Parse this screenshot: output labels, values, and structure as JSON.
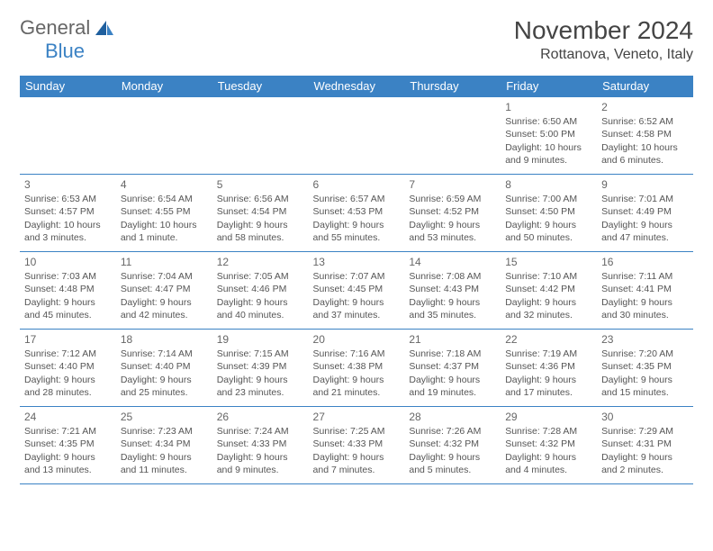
{
  "brand": {
    "word1": "General",
    "word2": "Blue",
    "accent_color": "#3b82c4"
  },
  "title": "November 2024",
  "location": "Rottanova, Veneto, Italy",
  "colors": {
    "header_bg": "#3b82c4",
    "header_text": "#ffffff",
    "border": "#3b82c4",
    "body_text": "#555555",
    "background": "#ffffff"
  },
  "weekdays": [
    "Sunday",
    "Monday",
    "Tuesday",
    "Wednesday",
    "Thursday",
    "Friday",
    "Saturday"
  ],
  "weeks": [
    [
      null,
      null,
      null,
      null,
      null,
      {
        "day": "1",
        "sunrise": "Sunrise: 6:50 AM",
        "sunset": "Sunset: 5:00 PM",
        "daylight": "Daylight: 10 hours and 9 minutes."
      },
      {
        "day": "2",
        "sunrise": "Sunrise: 6:52 AM",
        "sunset": "Sunset: 4:58 PM",
        "daylight": "Daylight: 10 hours and 6 minutes."
      }
    ],
    [
      {
        "day": "3",
        "sunrise": "Sunrise: 6:53 AM",
        "sunset": "Sunset: 4:57 PM",
        "daylight": "Daylight: 10 hours and 3 minutes."
      },
      {
        "day": "4",
        "sunrise": "Sunrise: 6:54 AM",
        "sunset": "Sunset: 4:55 PM",
        "daylight": "Daylight: 10 hours and 1 minute."
      },
      {
        "day": "5",
        "sunrise": "Sunrise: 6:56 AM",
        "sunset": "Sunset: 4:54 PM",
        "daylight": "Daylight: 9 hours and 58 minutes."
      },
      {
        "day": "6",
        "sunrise": "Sunrise: 6:57 AM",
        "sunset": "Sunset: 4:53 PM",
        "daylight": "Daylight: 9 hours and 55 minutes."
      },
      {
        "day": "7",
        "sunrise": "Sunrise: 6:59 AM",
        "sunset": "Sunset: 4:52 PM",
        "daylight": "Daylight: 9 hours and 53 minutes."
      },
      {
        "day": "8",
        "sunrise": "Sunrise: 7:00 AM",
        "sunset": "Sunset: 4:50 PM",
        "daylight": "Daylight: 9 hours and 50 minutes."
      },
      {
        "day": "9",
        "sunrise": "Sunrise: 7:01 AM",
        "sunset": "Sunset: 4:49 PM",
        "daylight": "Daylight: 9 hours and 47 minutes."
      }
    ],
    [
      {
        "day": "10",
        "sunrise": "Sunrise: 7:03 AM",
        "sunset": "Sunset: 4:48 PM",
        "daylight": "Daylight: 9 hours and 45 minutes."
      },
      {
        "day": "11",
        "sunrise": "Sunrise: 7:04 AM",
        "sunset": "Sunset: 4:47 PM",
        "daylight": "Daylight: 9 hours and 42 minutes."
      },
      {
        "day": "12",
        "sunrise": "Sunrise: 7:05 AM",
        "sunset": "Sunset: 4:46 PM",
        "daylight": "Daylight: 9 hours and 40 minutes."
      },
      {
        "day": "13",
        "sunrise": "Sunrise: 7:07 AM",
        "sunset": "Sunset: 4:45 PM",
        "daylight": "Daylight: 9 hours and 37 minutes."
      },
      {
        "day": "14",
        "sunrise": "Sunrise: 7:08 AM",
        "sunset": "Sunset: 4:43 PM",
        "daylight": "Daylight: 9 hours and 35 minutes."
      },
      {
        "day": "15",
        "sunrise": "Sunrise: 7:10 AM",
        "sunset": "Sunset: 4:42 PM",
        "daylight": "Daylight: 9 hours and 32 minutes."
      },
      {
        "day": "16",
        "sunrise": "Sunrise: 7:11 AM",
        "sunset": "Sunset: 4:41 PM",
        "daylight": "Daylight: 9 hours and 30 minutes."
      }
    ],
    [
      {
        "day": "17",
        "sunrise": "Sunrise: 7:12 AM",
        "sunset": "Sunset: 4:40 PM",
        "daylight": "Daylight: 9 hours and 28 minutes."
      },
      {
        "day": "18",
        "sunrise": "Sunrise: 7:14 AM",
        "sunset": "Sunset: 4:40 PM",
        "daylight": "Daylight: 9 hours and 25 minutes."
      },
      {
        "day": "19",
        "sunrise": "Sunrise: 7:15 AM",
        "sunset": "Sunset: 4:39 PM",
        "daylight": "Daylight: 9 hours and 23 minutes."
      },
      {
        "day": "20",
        "sunrise": "Sunrise: 7:16 AM",
        "sunset": "Sunset: 4:38 PM",
        "daylight": "Daylight: 9 hours and 21 minutes."
      },
      {
        "day": "21",
        "sunrise": "Sunrise: 7:18 AM",
        "sunset": "Sunset: 4:37 PM",
        "daylight": "Daylight: 9 hours and 19 minutes."
      },
      {
        "day": "22",
        "sunrise": "Sunrise: 7:19 AM",
        "sunset": "Sunset: 4:36 PM",
        "daylight": "Daylight: 9 hours and 17 minutes."
      },
      {
        "day": "23",
        "sunrise": "Sunrise: 7:20 AM",
        "sunset": "Sunset: 4:35 PM",
        "daylight": "Daylight: 9 hours and 15 minutes."
      }
    ],
    [
      {
        "day": "24",
        "sunrise": "Sunrise: 7:21 AM",
        "sunset": "Sunset: 4:35 PM",
        "daylight": "Daylight: 9 hours and 13 minutes."
      },
      {
        "day": "25",
        "sunrise": "Sunrise: 7:23 AM",
        "sunset": "Sunset: 4:34 PM",
        "daylight": "Daylight: 9 hours and 11 minutes."
      },
      {
        "day": "26",
        "sunrise": "Sunrise: 7:24 AM",
        "sunset": "Sunset: 4:33 PM",
        "daylight": "Daylight: 9 hours and 9 minutes."
      },
      {
        "day": "27",
        "sunrise": "Sunrise: 7:25 AM",
        "sunset": "Sunset: 4:33 PM",
        "daylight": "Daylight: 9 hours and 7 minutes."
      },
      {
        "day": "28",
        "sunrise": "Sunrise: 7:26 AM",
        "sunset": "Sunset: 4:32 PM",
        "daylight": "Daylight: 9 hours and 5 minutes."
      },
      {
        "day": "29",
        "sunrise": "Sunrise: 7:28 AM",
        "sunset": "Sunset: 4:32 PM",
        "daylight": "Daylight: 9 hours and 4 minutes."
      },
      {
        "day": "30",
        "sunrise": "Sunrise: 7:29 AM",
        "sunset": "Sunset: 4:31 PM",
        "daylight": "Daylight: 9 hours and 2 minutes."
      }
    ]
  ]
}
